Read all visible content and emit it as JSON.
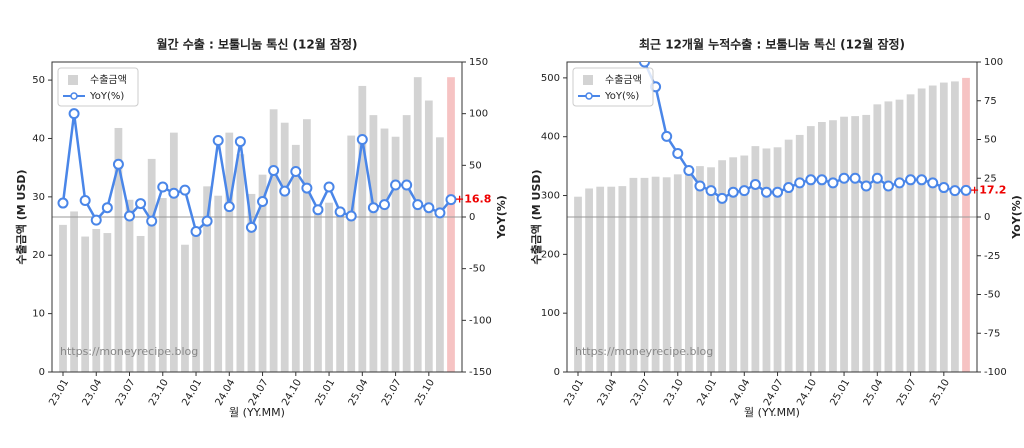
{
  "chart_data": [
    {
      "type": "bar-line",
      "title": "월간 수출 : 보툴니눔 톡신 (12월 잠정)",
      "x_label": "월 (YY.MM)",
      "y_label": "수출금액 (M USD)",
      "y2_label": "YoY(%)",
      "categories": [
        "23.01",
        null,
        null,
        "23.04",
        null,
        null,
        "23.07",
        null,
        null,
        "23.10",
        null,
        null,
        "24.01",
        null,
        null,
        "24.04",
        null,
        null,
        "24.07",
        null,
        null,
        "24.10",
        null,
        null,
        "25.01",
        null,
        null,
        "25.04",
        null,
        null,
        "25.07",
        null,
        null,
        "25.10",
        null,
        null
      ],
      "series": [
        {
          "name": "수출금액",
          "color": "#d3d3d3",
          "highlight_color": "#f6c3c3",
          "values": [
            25.2,
            27.5,
            23.2,
            24.5,
            23.8,
            41.8,
            29.5,
            23.3,
            36.5,
            29.8,
            41,
            21.8,
            24.7,
            31.8,
            30.2,
            41,
            37.3,
            30.5,
            33.8,
            45,
            42.7,
            38.9,
            43.3,
            27.8,
            29,
            27.3,
            40.5,
            49,
            44,
            41.7,
            40.3,
            44,
            50.5,
            46.5,
            40.2,
            50.5
          ]
        },
        {
          "name": "YoY(%)",
          "color": "#4a86e8",
          "axis": "y2",
          "values": [
            13.5,
            100,
            16,
            -3,
            9,
            51,
            1,
            13,
            -4,
            29,
            23,
            26,
            -14,
            -4,
            74,
            10,
            73,
            -10,
            15,
            45,
            25,
            44,
            28,
            7,
            29,
            5,
            1,
            75,
            9,
            12,
            31,
            31,
            12,
            9,
            4,
            16.8
          ],
          "annotation": "+16.8"
        }
      ],
      "ylim": [
        0,
        53.1
      ],
      "yticks": [
        0,
        10,
        20,
        30,
        40,
        50
      ],
      "y2lim": [
        -150,
        150
      ],
      "y2ticks": [
        -150,
        -100,
        -50,
        0,
        50,
        100,
        150
      ],
      "legend": "upper left",
      "watermark": "https://moneyrecipe.blog"
    },
    {
      "type": "bar-line",
      "title": "최근 12개월 누적수출 : 보툴니눔 톡신 (12월 잠정)",
      "x_label": "월 (YY.MM)",
      "y_label": "수출금액 (M USD)",
      "y2_label": "YoY(%)",
      "categories": [
        "23.01",
        null,
        null,
        "23.04",
        null,
        null,
        "23.07",
        null,
        null,
        "23.10",
        null,
        null,
        "24.01",
        null,
        null,
        "24.04",
        null,
        null,
        "24.07",
        null,
        null,
        "24.10",
        null,
        null,
        "25.01",
        null,
        null,
        "25.04",
        null,
        null,
        "25.07",
        null,
        null,
        "25.10",
        null,
        null
      ],
      "series": [
        {
          "name": "수출금액",
          "color": "#d3d3d3",
          "highlight_color": "#f6c3c3",
          "values": [
            298,
            312,
            315,
            315,
            316,
            330,
            330,
            332,
            331,
            336,
            350,
            350,
            348,
            360,
            365,
            368,
            384,
            380,
            382,
            395,
            403,
            418,
            425,
            428,
            434,
            435,
            437,
            455,
            460,
            463,
            472,
            482,
            487,
            492,
            494,
            500
          ]
        },
        {
          "name": "YoY(%)",
          "color": "#4a86e8",
          "axis": "y2",
          "values": [
            null,
            null,
            null,
            null,
            null,
            null,
            100,
            84,
            52,
            41,
            30,
            20,
            17,
            12,
            16,
            17,
            21,
            16,
            16,
            19,
            22,
            24,
            24,
            22,
            25,
            25,
            20,
            25,
            20,
            22,
            24,
            24,
            22,
            19,
            17,
            17.2
          ],
          "annotation": "+17.2"
        }
      ],
      "ylim": [
        0,
        527
      ],
      "yticks": [
        0,
        100,
        200,
        300,
        400,
        500
      ],
      "y2lim": [
        -100,
        100
      ],
      "y2ticks": [
        -100,
        -75,
        -50,
        -25,
        0,
        25,
        50,
        75,
        100
      ],
      "legend": "upper left",
      "watermark": "https://moneyrecipe.blog"
    }
  ]
}
